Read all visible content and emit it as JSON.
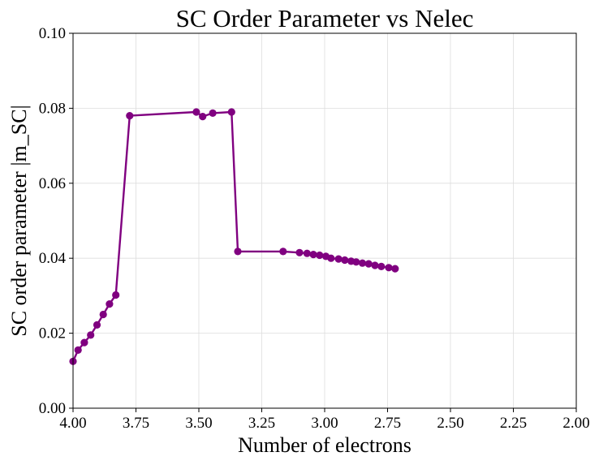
{
  "chart_data": {
    "type": "line",
    "title": "SC Order Parameter vs Nelec",
    "xlabel": "Number of electrons",
    "ylabel": "SC order parameter |m_SC|",
    "xlim": [
      4.0,
      2.0
    ],
    "ylim": [
      0.0,
      0.1
    ],
    "x_inverted": true,
    "grid": true,
    "legend": "none",
    "x_ticks": [
      4.0,
      3.75,
      3.5,
      3.25,
      3.0,
      2.75,
      2.5,
      2.25,
      2.0
    ],
    "x_tick_labels": [
      "4.00",
      "3.75",
      "3.50",
      "3.25",
      "3.00",
      "2.75",
      "2.50",
      "2.25",
      "2.00"
    ],
    "y_ticks": [
      0.0,
      0.02,
      0.04,
      0.06,
      0.08,
      0.1
    ],
    "y_tick_labels": [
      "0.00",
      "0.02",
      "0.04",
      "0.06",
      "0.08",
      "0.10"
    ],
    "series": [
      {
        "color": "#800080",
        "marker": "circle",
        "x": [
          4.0,
          3.98,
          3.955,
          3.93,
          3.905,
          3.88,
          3.855,
          3.83,
          3.775,
          3.51,
          3.485,
          3.445,
          3.37,
          3.345,
          3.165,
          3.1,
          3.07,
          3.045,
          3.02,
          2.995,
          2.975,
          2.945,
          2.92,
          2.895,
          2.875,
          2.85,
          2.825,
          2.8,
          2.775,
          2.745,
          2.72
        ],
        "y": [
          0.0125,
          0.0155,
          0.0175,
          0.0195,
          0.0222,
          0.025,
          0.0278,
          0.0302,
          0.078,
          0.079,
          0.0778,
          0.0787,
          0.079,
          0.0418,
          0.0418,
          0.0415,
          0.0413,
          0.041,
          0.0408,
          0.0405,
          0.04,
          0.0398,
          0.0395,
          0.0392,
          0.039,
          0.0387,
          0.0385,
          0.0381,
          0.0378,
          0.0375,
          0.0372
        ]
      }
    ]
  }
}
